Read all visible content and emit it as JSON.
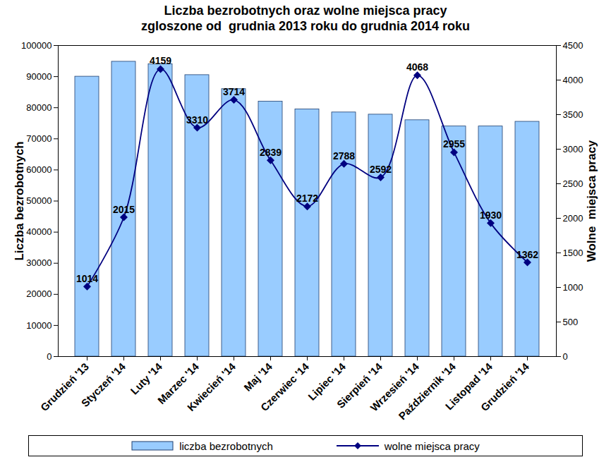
{
  "chart_data": {
    "type": "bar",
    "title": "Liczba bezrobotnych oraz wolne miejsca pracy",
    "subtitle": "zgloszone od  grudnia 2013 roku do grudnia 2014 roku",
    "y_label": "Liczba bezrobotnych",
    "y2_label": "Wolne  miejsca pracy",
    "categories": [
      "Grudzień '13",
      "Styczeń '14",
      "Luty '14",
      "Marzec '14",
      "Kwiecień '14",
      "Maj '14",
      "Czerwiec '14",
      "Lipiec '14",
      "Sierpień '14",
      "Wrzesień '14",
      "Październik '14",
      "Listopad '14",
      "Grudzień '14"
    ],
    "series": [
      {
        "name": "liczba bezrobotnych",
        "type": "bar",
        "color": "#99ccff",
        "values": [
          90000,
          94800,
          94000,
          90500,
          86000,
          82000,
          79500,
          78500,
          77800,
          76000,
          74000,
          74000,
          75500
        ]
      },
      {
        "name": "wolne miejsca pracy",
        "type": "line",
        "axis": "y2",
        "color": "#000080",
        "marker": "diamond",
        "data_labels": true,
        "values": [
          1014,
          2015,
          4159,
          3310,
          3714,
          2839,
          2172,
          2788,
          2592,
          4068,
          2955,
          1930,
          1362
        ]
      }
    ],
    "ylim": [
      0,
      100000
    ],
    "yticks": [
      0,
      10000,
      20000,
      30000,
      40000,
      50000,
      60000,
      70000,
      80000,
      90000,
      100000
    ],
    "y2lim": [
      0,
      4500
    ],
    "y2ticks": [
      0,
      500,
      1000,
      1500,
      2000,
      2500,
      3000,
      3500,
      4000,
      4500
    ],
    "legend": "bottom"
  }
}
